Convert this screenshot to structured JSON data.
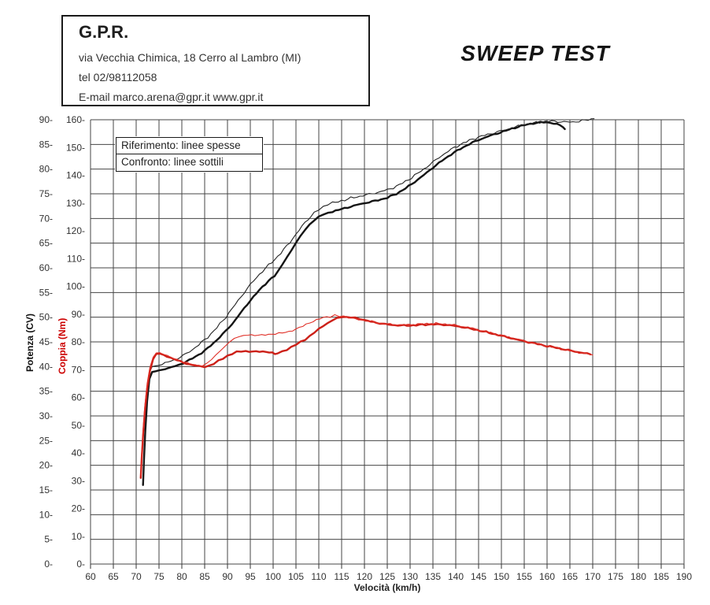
{
  "header": {
    "company": "G.P.R.",
    "address": "via Vecchia Chimica, 18 Cerro al Lambro (MI)",
    "phone": "tel 02/98112058",
    "email_line": "E-mail marco.arena@gpr.it  www.gpr.it"
  },
  "title": "SWEEP TEST",
  "legend": {
    "reference": "Riferimento: linee spesse",
    "comparison": "Confronto: linee sottili"
  },
  "axes": {
    "x_label": "Velocità (km/h)",
    "x_ticks": [
      60,
      65,
      70,
      75,
      80,
      85,
      90,
      95,
      100,
      105,
      110,
      115,
      120,
      125,
      130,
      135,
      140,
      145,
      150,
      155,
      160,
      165,
      170,
      175,
      180,
      185,
      190
    ],
    "power_label": "Potenza (CV)",
    "power_ticks": [
      0,
      5,
      10,
      15,
      20,
      25,
      30,
      35,
      40,
      45,
      50,
      55,
      60,
      65,
      70,
      75,
      80,
      85,
      90
    ],
    "torque_label": "Coppia (Nm)",
    "torque_ticks": [
      0,
      10,
      20,
      30,
      40,
      50,
      60,
      70,
      80,
      90,
      100,
      110,
      120,
      130,
      140,
      150,
      160
    ]
  },
  "colors": {
    "power_line": "#141414",
    "torque_line": "#d02620",
    "grid": "#454545",
    "tick_text": "#333333",
    "torque_title": "#cc0000"
  },
  "chart_data": {
    "type": "line",
    "title": "SWEEP TEST",
    "xlabel": "Velocità (km/h)",
    "x_range": [
      60,
      190
    ],
    "x_step": 5,
    "y_power_cv_range": [
      0,
      90
    ],
    "y_torque_nm_range": [
      0,
      160
    ],
    "grid": true,
    "legend_position": "top-left-inside",
    "series": [
      {
        "name": "Potenza - Riferimento (linea spessa)",
        "axis": "power_cv",
        "color": "#141414",
        "width": 2.4,
        "noise": 0.18,
        "points": [
          [
            71.5,
            16
          ],
          [
            71.7,
            21
          ],
          [
            72,
            27
          ],
          [
            72.4,
            33
          ],
          [
            72.9,
            37.5
          ],
          [
            73.5,
            38.9
          ],
          [
            75,
            39.2
          ],
          [
            77,
            39.7
          ],
          [
            79,
            40.2
          ],
          [
            81,
            41
          ],
          [
            83,
            42
          ],
          [
            85,
            43.2
          ],
          [
            87,
            44.8
          ],
          [
            89,
            46.6
          ],
          [
            91,
            48.6
          ],
          [
            93,
            51
          ],
          [
            95,
            53.4
          ],
          [
            97,
            55.5
          ],
          [
            99,
            57.4
          ],
          [
            100.3,
            58.3
          ],
          [
            101,
            59.2
          ],
          [
            102,
            60.6
          ],
          [
            103,
            62.1
          ],
          [
            104,
            63.6
          ],
          [
            105,
            65.1
          ],
          [
            106,
            66.4
          ],
          [
            107,
            67.7
          ],
          [
            108,
            68.8
          ],
          [
            109,
            69.7
          ],
          [
            110,
            70.3
          ],
          [
            111,
            70.8
          ],
          [
            112,
            71.1
          ],
          [
            113,
            71.4
          ],
          [
            115,
            71.9
          ],
          [
            117,
            72.4
          ],
          [
            119,
            72.9
          ],
          [
            121,
            73.3
          ],
          [
            123,
            73.7
          ],
          [
            125,
            74.2
          ],
          [
            127,
            75
          ],
          [
            129,
            76.1
          ],
          [
            131,
            77.4
          ],
          [
            133,
            78.8
          ],
          [
            135,
            80.3
          ],
          [
            137,
            81.7
          ],
          [
            139,
            83
          ],
          [
            141,
            84.1
          ],
          [
            143,
            85.1
          ],
          [
            145,
            85.9
          ],
          [
            147,
            86.6
          ],
          [
            149,
            87.2
          ],
          [
            151,
            87.8
          ],
          [
            153,
            88.4
          ],
          [
            155,
            88.9
          ],
          [
            157,
            89.3
          ],
          [
            158.5,
            89.5
          ],
          [
            160,
            89.4
          ],
          [
            161.5,
            89.2
          ],
          [
            162.8,
            89
          ],
          [
            163.5,
            88.6
          ],
          [
            163.9,
            88.1
          ]
        ]
      },
      {
        "name": "Potenza - Confronto (linea sottile)",
        "axis": "power_cv",
        "color": "#222222",
        "width": 1.1,
        "noise": 0.3,
        "points": [
          [
            71.5,
            16.5
          ],
          [
            71.7,
            22
          ],
          [
            72,
            29
          ],
          [
            72.4,
            35
          ],
          [
            72.9,
            38.8
          ],
          [
            73.5,
            40
          ],
          [
            75,
            40.3
          ],
          [
            77,
            40.9
          ],
          [
            79,
            41.6
          ],
          [
            81,
            42.6
          ],
          [
            83,
            43.9
          ],
          [
            85,
            45.4
          ],
          [
            87,
            47.2
          ],
          [
            89,
            49.3
          ],
          [
            91,
            51.7
          ],
          [
            93,
            54.2
          ],
          [
            95,
            56.6
          ],
          [
            97,
            58.7
          ],
          [
            99,
            60.5
          ],
          [
            101,
            62.3
          ],
          [
            103,
            64.4
          ],
          [
            105,
            66.8
          ],
          [
            107,
            69.2
          ],
          [
            109,
            71.2
          ],
          [
            110,
            71.9
          ],
          [
            111,
            72.4
          ],
          [
            112,
            72.8
          ],
          [
            113,
            73.1
          ],
          [
            115,
            73.6
          ],
          [
            117,
            74.1
          ],
          [
            119,
            74.5
          ],
          [
            121,
            74.9
          ],
          [
            123,
            75.3
          ],
          [
            125,
            75.8
          ],
          [
            127,
            76.5
          ],
          [
            129,
            77.5
          ],
          [
            131,
            78.7
          ],
          [
            133,
            80
          ],
          [
            135,
            81.4
          ],
          [
            137,
            82.8
          ],
          [
            139,
            84
          ],
          [
            141,
            85
          ],
          [
            143,
            85.8
          ],
          [
            145,
            86.5
          ],
          [
            147,
            87
          ],
          [
            149,
            87.5
          ],
          [
            151,
            88
          ],
          [
            153,
            88.5
          ],
          [
            155,
            89
          ],
          [
            157,
            89.3
          ],
          [
            159,
            89.6
          ],
          [
            161,
            89.7
          ],
          [
            163,
            89.6
          ],
          [
            165,
            89.5
          ],
          [
            167,
            89.7
          ],
          [
            169,
            90
          ],
          [
            170.3,
            90.2
          ]
        ]
      },
      {
        "name": "Coppia - Riferimento (linea spessa)",
        "axis": "torque_nm",
        "color": "#cc2018",
        "width": 2.4,
        "noise": 0.3,
        "points": [
          [
            71,
            31
          ],
          [
            71.2,
            38
          ],
          [
            71.5,
            46
          ],
          [
            71.9,
            55
          ],
          [
            72.4,
            63
          ],
          [
            73,
            69.5
          ],
          [
            73.7,
            73.8
          ],
          [
            74.4,
            75.7
          ],
          [
            75.2,
            75.8
          ],
          [
            76,
            75.3
          ],
          [
            77.5,
            74.3
          ],
          [
            79,
            73.3
          ],
          [
            81,
            72.2
          ],
          [
            83,
            71.4
          ],
          [
            85,
            71.1
          ],
          [
            86,
            71.4
          ],
          [
            87,
            72.1
          ],
          [
            88,
            73.1
          ],
          [
            89,
            74.1
          ],
          [
            90,
            75
          ],
          [
            91,
            75.7
          ],
          [
            92,
            76.3
          ],
          [
            93,
            76.6
          ],
          [
            94,
            76.7
          ],
          [
            95.5,
            76.6
          ],
          [
            97,
            76.4
          ],
          [
            98.5,
            76.3
          ],
          [
            99.8,
            76.2
          ],
          [
            100.4,
            75.6
          ],
          [
            101,
            75.9
          ],
          [
            102,
            76.5
          ],
          [
            103,
            77.3
          ],
          [
            104,
            78.1
          ],
          [
            105,
            79
          ],
          [
            106,
            79.9
          ],
          [
            107,
            80.9
          ],
          [
            108,
            82.1
          ],
          [
            109,
            83.3
          ],
          [
            110,
            84.6
          ],
          [
            111,
            85.8
          ],
          [
            112,
            86.9
          ],
          [
            113,
            87.8
          ],
          [
            114,
            88.5
          ],
          [
            115,
            88.9
          ],
          [
            116,
            89
          ],
          [
            117,
            88.9
          ],
          [
            118,
            88.6
          ],
          [
            119,
            88.2
          ],
          [
            120,
            87.8
          ],
          [
            122,
            87.1
          ],
          [
            124,
            86.5
          ],
          [
            126,
            86.1
          ],
          [
            128,
            85.9
          ],
          [
            130,
            85.9
          ],
          [
            132,
            86.1
          ],
          [
            134,
            86.3
          ],
          [
            136,
            86.3
          ],
          [
            138,
            86.1
          ],
          [
            140,
            85.7
          ],
          [
            142,
            85.2
          ],
          [
            144,
            84.5
          ],
          [
            146,
            83.8
          ],
          [
            148,
            83
          ],
          [
            150,
            82.2
          ],
          [
            152,
            81.4
          ],
          [
            154,
            80.6
          ],
          [
            156,
            79.9
          ],
          [
            158,
            79.2
          ],
          [
            160,
            78.5
          ],
          [
            162,
            77.9
          ],
          [
            164,
            77.2
          ],
          [
            166,
            76.6
          ],
          [
            168,
            76
          ],
          [
            169.5,
            75.5
          ]
        ]
      },
      {
        "name": "Coppia - Confronto (linea sottile)",
        "axis": "torque_nm",
        "color": "#e03028",
        "width": 1.1,
        "noise": 0.45,
        "points": [
          [
            71,
            32
          ],
          [
            71.2,
            40
          ],
          [
            71.5,
            48
          ],
          [
            71.9,
            57
          ],
          [
            72.4,
            65
          ],
          [
            73,
            70.8
          ],
          [
            73.7,
            74.5
          ],
          [
            74.4,
            76
          ],
          [
            75.2,
            76
          ],
          [
            76,
            75.5
          ],
          [
            77.5,
            74.5
          ],
          [
            79,
            73.5
          ],
          [
            81,
            72.4
          ],
          [
            83,
            71.7
          ],
          [
            84.5,
            71.6
          ],
          [
            85.5,
            72.3
          ],
          [
            86.5,
            73.6
          ],
          [
            87.5,
            75.2
          ],
          [
            88.5,
            77
          ],
          [
            89.5,
            78.6
          ],
          [
            90.5,
            80
          ],
          [
            91.5,
            81.1
          ],
          [
            92.5,
            81.9
          ],
          [
            93.5,
            82.4
          ],
          [
            94.5,
            82.6
          ],
          [
            96,
            82.6
          ],
          [
            97.5,
            82.5
          ],
          [
            99,
            82.6
          ],
          [
            100.5,
            82.8
          ],
          [
            102,
            83.1
          ],
          [
            103.5,
            83.7
          ],
          [
            105,
            84.8
          ],
          [
            106.5,
            85.8
          ],
          [
            108,
            86.9
          ],
          [
            109.5,
            87.8
          ],
          [
            111,
            88.6
          ],
          [
            112.5,
            89.1
          ],
          [
            113.5,
            89.35
          ],
          [
            114.5,
            89.35
          ],
          [
            115.5,
            89.2
          ],
          [
            116.5,
            88.9
          ],
          [
            118,
            88.4
          ],
          [
            119.5,
            87.9
          ],
          [
            121,
            87.4
          ],
          [
            123,
            86.8
          ],
          [
            125,
            86.4
          ],
          [
            127,
            86.2
          ],
          [
            129,
            86.1
          ],
          [
            131,
            86.3
          ],
          [
            133,
            86.5
          ],
          [
            135,
            86.6
          ],
          [
            137,
            86.5
          ],
          [
            139,
            86.2
          ],
          [
            141,
            85.7
          ],
          [
            143,
            85.1
          ],
          [
            145,
            84.3
          ],
          [
            147,
            83.5
          ],
          [
            149,
            82.7
          ],
          [
            151,
            81.9
          ],
          [
            153,
            81.1
          ],
          [
            155,
            80.3
          ],
          [
            157,
            79.6
          ],
          [
            159,
            78.9
          ],
          [
            161,
            78.2
          ],
          [
            163,
            77.5
          ],
          [
            165,
            76.8
          ],
          [
            167,
            76.2
          ],
          [
            169,
            75.6
          ],
          [
            170,
            75.3
          ]
        ]
      }
    ]
  }
}
